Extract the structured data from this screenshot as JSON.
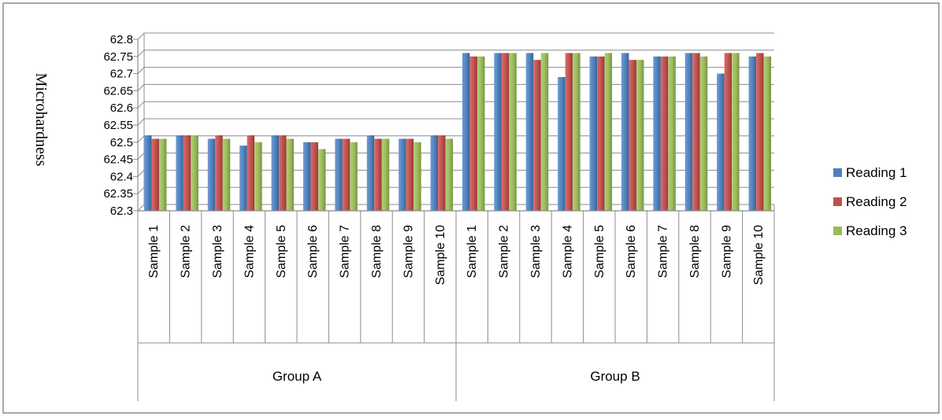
{
  "chart_data": {
    "type": "bar",
    "title": "",
    "xlabel": "",
    "ylabel": "Microhardness",
    "ylim": [
      62.3,
      62.8
    ],
    "ytick_step": 0.05,
    "yticks": [
      "62.3",
      "62.35",
      "62.4",
      "62.45",
      "62.5",
      "62.55",
      "62.6",
      "62.65",
      "62.7",
      "62.75",
      "62.8"
    ],
    "grid": true,
    "legend_position": "right",
    "groups": [
      {
        "name": "Group A",
        "categories": [
          "Sample 1",
          "Sample 2",
          "Sample 3",
          "Sample 4",
          "Sample 5",
          "Sample 6",
          "Sample 7",
          "Sample 8",
          "Sample 9",
          "Sample 10"
        ]
      },
      {
        "name": "Group B",
        "categories": [
          "Sample 1",
          "Sample 2",
          "Sample 3",
          "Sample 4",
          "Sample 5",
          "Sample 6",
          "Sample 7",
          "Sample 8",
          "Sample 9",
          "Sample 10"
        ]
      }
    ],
    "series": [
      {
        "name": "Reading 1",
        "color": "#4F81BD",
        "values": [
          62.52,
          62.52,
          62.51,
          62.49,
          62.52,
          62.5,
          62.51,
          62.52,
          62.51,
          62.52,
          62.76,
          62.76,
          62.76,
          62.69,
          62.75,
          62.76,
          62.75,
          62.76,
          62.7,
          62.75
        ]
      },
      {
        "name": "Reading 2",
        "color": "#C0504D",
        "values": [
          62.51,
          62.52,
          62.52,
          62.52,
          62.52,
          62.5,
          62.51,
          62.51,
          62.51,
          62.52,
          62.75,
          62.76,
          62.74,
          62.76,
          62.75,
          62.74,
          62.75,
          62.76,
          62.76,
          62.76
        ]
      },
      {
        "name": "Reading 3",
        "color": "#9BBB59",
        "values": [
          62.51,
          62.52,
          62.51,
          62.5,
          62.51,
          62.48,
          62.5,
          62.51,
          62.5,
          62.51,
          62.75,
          62.76,
          62.76,
          62.76,
          62.76,
          62.74,
          62.75,
          62.75,
          62.76,
          62.75
        ]
      }
    ]
  }
}
